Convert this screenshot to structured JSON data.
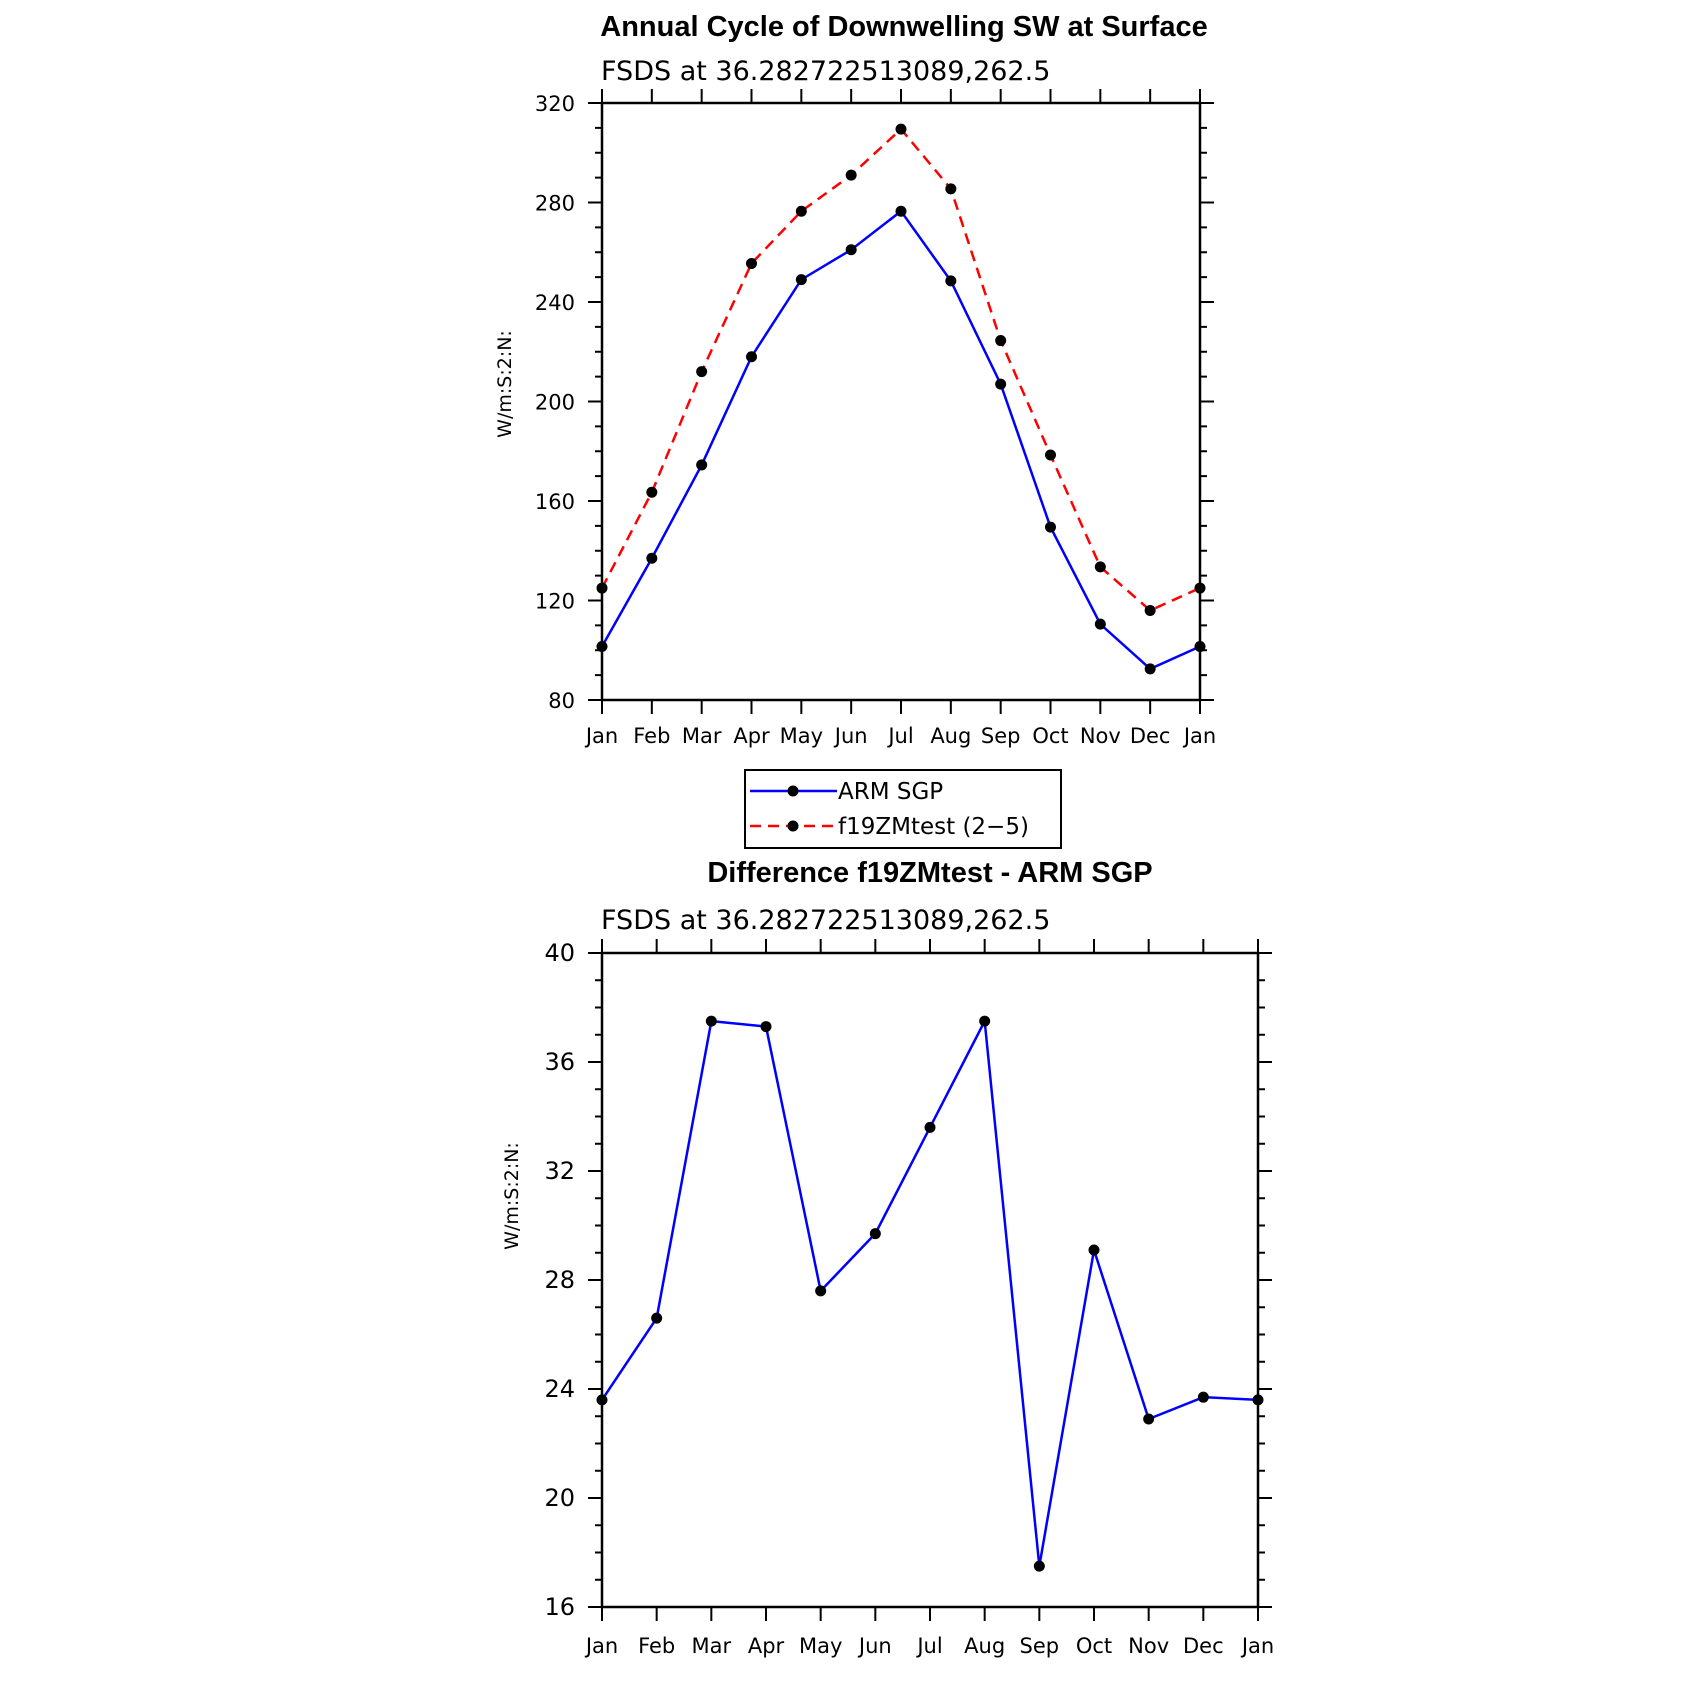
{
  "chart_data": [
    {
      "type": "line",
      "title": "Annual Cycle of Downwelling SW at Surface",
      "subtitle": "FSDS at 36.282722513089,262.5",
      "ylabel": "W/m:S:2:N:",
      "xlabel": "",
      "categories": [
        "Jan",
        "Feb",
        "Mar",
        "Apr",
        "May",
        "Jun",
        "Jul",
        "Aug",
        "Sep",
        "Oct",
        "Nov",
        "Dec",
        "Jan"
      ],
      "ylim": [
        80,
        320
      ],
      "yticks": [
        "80",
        "120",
        "160",
        "200",
        "240",
        "280",
        "320"
      ],
      "legend_position": "bottom-center",
      "series": [
        {
          "name": "ARM SGP",
          "color": "#0000ff",
          "dash": "solid",
          "values": [
            101.5,
            137,
            174.5,
            218,
            249,
            261,
            276.5,
            248.5,
            207,
            149.5,
            110.5,
            92.5,
            101.5
          ]
        },
        {
          "name": "f19ZMtest (2−5)",
          "color": "#ff0000",
          "dash": "dashed",
          "values": [
            125,
            163.5,
            212,
            255.5,
            276.5,
            291,
            309.5,
            285.5,
            224.5,
            178.5,
            133.5,
            116,
            125
          ]
        }
      ]
    },
    {
      "type": "line",
      "title": "Difference f19ZMtest - ARM SGP",
      "subtitle": "FSDS at 36.282722513089,262.5",
      "ylabel": "W/m:S:2:N:",
      "xlabel": "",
      "categories": [
        "Jan",
        "Feb",
        "Mar",
        "Apr",
        "May",
        "Jun",
        "Jul",
        "Aug",
        "Sep",
        "Oct",
        "Nov",
        "Dec",
        "Jan"
      ],
      "ylim": [
        16,
        40
      ],
      "yticks": [
        "16",
        "20",
        "24",
        "28",
        "32",
        "36",
        "40"
      ],
      "series": [
        {
          "name": "",
          "color": "#0000ff",
          "dash": "solid",
          "values": [
            23.6,
            26.6,
            37.5,
            37.3,
            27.6,
            29.7,
            33.6,
            37.5,
            17.5,
            29.1,
            22.9,
            23.7,
            23.6
          ]
        }
      ]
    }
  ]
}
